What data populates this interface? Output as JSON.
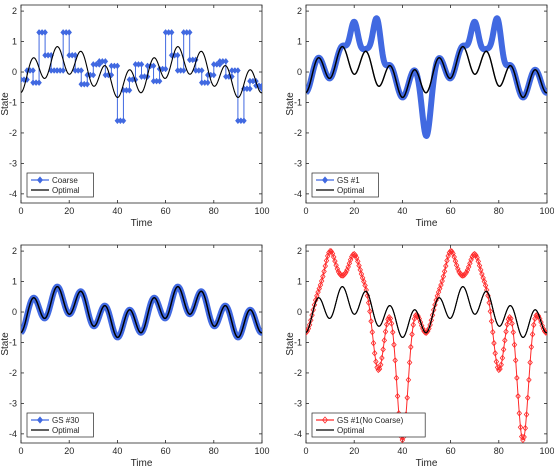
{
  "colors": {
    "optimal": "#000000",
    "blue": "#4169E1",
    "red": "#FF2A2A",
    "axis": "#262626",
    "frame_bg": "#ffffff"
  },
  "chart_data": [
    {
      "type": "line",
      "xlabel": "Time",
      "ylabel": "State",
      "xlim": [
        0,
        100
      ],
      "ylim": [
        -4.3,
        2.2
      ],
      "xticks": [
        "0",
        "20",
        "40",
        "60",
        "80",
        "100"
      ],
      "yticks": [
        "-4",
        "-3",
        "-2",
        "-1",
        "0",
        "1",
        "2"
      ],
      "legend_position": "bottom-left",
      "series": [
        {
          "name": "Coarse",
          "style": "step-markers",
          "color_key": "blue",
          "x": [
            0,
            2.5,
            5,
            7.5,
            10,
            12.5,
            15,
            17.5,
            20,
            22.5,
            25,
            27.5,
            30,
            32.5,
            35,
            37.5,
            40,
            42.5,
            45,
            47.5,
            50,
            52.5,
            55,
            57.5,
            60,
            62.5,
            65,
            67.5,
            70,
            72.5,
            75,
            77.5,
            80,
            82.5,
            85,
            87.5,
            90,
            92.5,
            95,
            97.5,
            100
          ],
          "values": [
            -0.25,
            0.05,
            -0.35,
            1.3,
            0.55,
            0.05,
            0.05,
            1.3,
            0.55,
            0.05,
            -0.4,
            -0.1,
            0.25,
            0.35,
            -0.1,
            0.2,
            -1.6,
            -0.6,
            -0.25,
            0.25,
            -0.15,
            0.2,
            -0.3,
            0.1,
            1.3,
            0.55,
            0.05,
            1.3,
            0.4,
            0.05,
            -0.35,
            -0.1,
            0.25,
            0.35,
            -0.15,
            0.05,
            -1.6,
            -0.55,
            -0.3,
            -0.45,
            -0.55
          ]
        },
        {
          "name": "Optimal",
          "style": "line",
          "color_key": "optimal",
          "formula_note": "optimal",
          "x": [],
          "values": []
        }
      ]
    },
    {
      "type": "line",
      "xlabel": "Time",
      "ylabel": "State",
      "xlim": [
        0,
        100
      ],
      "ylim": [
        -4.3,
        2.2
      ],
      "xticks": [
        "0",
        "20",
        "40",
        "60",
        "80",
        "100"
      ],
      "yticks": [
        "-4",
        "-3",
        "-2",
        "-1",
        "0",
        "1",
        "2"
      ],
      "legend_position": "bottom-left",
      "series": [
        {
          "name": "GS #1",
          "style": "thick-markers",
          "color_key": "blue",
          "peaks": [
            {
              "x": 20,
              "y": 1.65
            },
            {
              "x": 29.5,
              "y": 1.75
            },
            {
              "x": 50,
              "y": -2.1
            },
            {
              "x": 70,
              "y": 1.65
            },
            {
              "x": 79.5,
              "y": 1.75
            }
          ]
        },
        {
          "name": "Optimal",
          "style": "line",
          "color_key": "optimal"
        }
      ]
    },
    {
      "type": "line",
      "xlabel": "Time",
      "ylabel": "State",
      "xlim": [
        0,
        100
      ],
      "ylim": [
        -4.3,
        2.2
      ],
      "xticks": [
        "0",
        "20",
        "40",
        "60",
        "80",
        "100"
      ],
      "yticks": [
        "-4",
        "-3",
        "-2",
        "-1",
        "0",
        "1",
        "2"
      ],
      "legend_position": "bottom-left",
      "series": [
        {
          "name": "GS #30",
          "style": "thick-markers",
          "color_key": "blue",
          "peaks": []
        },
        {
          "name": "Optimal",
          "style": "line",
          "color_key": "optimal"
        }
      ]
    },
    {
      "type": "line",
      "xlabel": "Time",
      "ylabel": "State",
      "xlim": [
        0,
        100
      ],
      "ylim": [
        -4.3,
        2.2
      ],
      "xticks": [
        "0",
        "20",
        "40",
        "60",
        "80",
        "100"
      ],
      "yticks": [
        "-4",
        "-3",
        "-2",
        "-1",
        "0",
        "1",
        "2"
      ],
      "legend_position": "bottom-left",
      "series": [
        {
          "name": "GS #1(No Coarse)",
          "style": "markers",
          "color_key": "red",
          "peaks": [
            {
              "x": 10,
              "y": 2.0
            },
            {
              "x": 20,
              "y": 1.9
            },
            {
              "x": 30,
              "y": -1.9
            },
            {
              "x": 40,
              "y": -4.2
            },
            {
              "x": 60,
              "y": 2.0
            },
            {
              "x": 70,
              "y": 1.9
            },
            {
              "x": 80,
              "y": -1.9
            },
            {
              "x": 90,
              "y": -4.2
            }
          ]
        },
        {
          "name": "Optimal",
          "style": "line",
          "color_key": "optimal"
        }
      ]
    }
  ]
}
